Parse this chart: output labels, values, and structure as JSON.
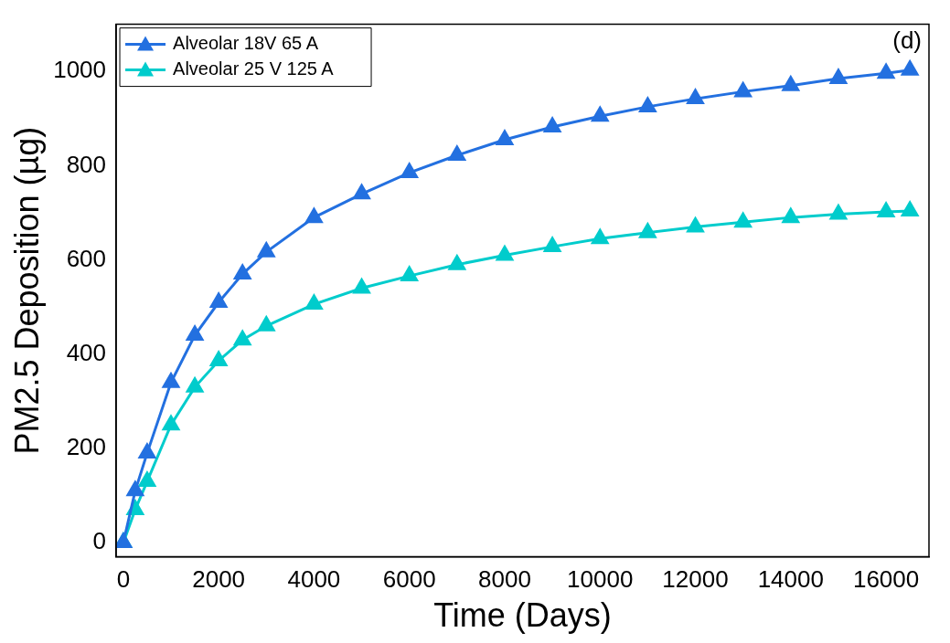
{
  "chart_data": {
    "type": "line",
    "xlabel": "Time (Days)",
    "ylabel": "PM2.5 Deposition (µg)",
    "annotations": [
      "(d)"
    ],
    "xlim": [
      -150,
      16900
    ],
    "xticks": [
      0,
      2000,
      4000,
      6000,
      8000,
      10000,
      12000,
      14000,
      16000
    ],
    "ylim": [
      -30,
      1100
    ],
    "yticks": [
      0,
      200,
      400,
      600,
      800,
      1000
    ],
    "grid": false,
    "legend": "top left",
    "marker": "triangle",
    "series": [
      {
        "name": "Alveolar 18V 65 A",
        "color": "#2370e0",
        "x": [
          0,
          250,
          500,
          1000,
          1500,
          2000,
          2500,
          3000,
          4000,
          5000,
          6000,
          7000,
          8000,
          9000,
          10000,
          11000,
          12000,
          13000,
          14000,
          15000,
          16000,
          16500
        ],
        "values": [
          0,
          110,
          190,
          340,
          440,
          510,
          570,
          617,
          690,
          740,
          785,
          822,
          855,
          882,
          905,
          925,
          942,
          957,
          970,
          985,
          996,
          1003
        ]
      },
      {
        "name": "Alveolar 25 V 125 A",
        "color": "#00cccc",
        "x": [
          0,
          250,
          500,
          1000,
          1500,
          2000,
          2500,
          3000,
          4000,
          5000,
          6000,
          7000,
          8000,
          9000,
          10000,
          11000,
          12000,
          13000,
          14000,
          15000,
          16000,
          16500
        ],
        "values": [
          0,
          70,
          130,
          250,
          330,
          386,
          430,
          460,
          506,
          540,
          566,
          590,
          610,
          628,
          645,
          658,
          670,
          680,
          690,
          697,
          702,
          704
        ]
      }
    ]
  }
}
